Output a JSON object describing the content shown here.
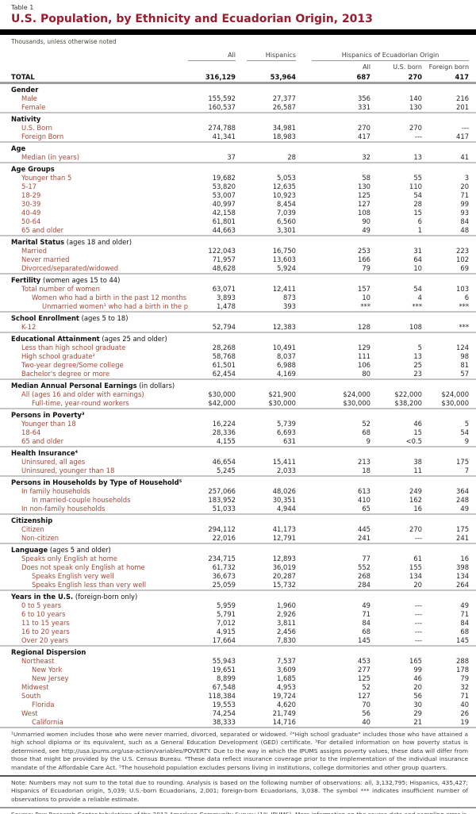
{
  "page": {
    "kicker": "Table 1",
    "title": "U.S. Population, by Ethnicity and Ecuadorian Origin, 2013",
    "subtitle": "Thousands, unless otherwise noted"
  },
  "colors": {
    "title_red": "#9A1C2E",
    "row_label_red": "#A04B3B",
    "header_bar": "#000000",
    "section_separator": "#c6c6c6",
    "total_rule": "#9e9e9e",
    "note_rule": "#565656",
    "body_text": "#262626"
  },
  "table": {
    "headers": {
      "all": "All",
      "hispanics": "Hispanics",
      "group": "Hispanics of Ecuadorian Origin",
      "sub": [
        "All",
        "U.S. born",
        "Foreign born"
      ]
    },
    "rows": [
      {
        "t": "total",
        "label": "TOTAL",
        "v": [
          "316,129",
          "53,964",
          "687",
          "270",
          "417"
        ]
      },
      {
        "t": "sec",
        "label": "Gender",
        "nb": true
      },
      {
        "t": "d",
        "label": "Male",
        "i": 1,
        "v": [
          "155,592",
          "27,377",
          "356",
          "140",
          "216"
        ]
      },
      {
        "t": "d",
        "label": "Female",
        "i": 1,
        "v": [
          "160,537",
          "26,587",
          "331",
          "130",
          "201"
        ]
      },
      {
        "t": "sec",
        "label": "Nativity"
      },
      {
        "t": "d",
        "label": "U.S. Born",
        "i": 1,
        "v": [
          "274,788",
          "34,981",
          "270",
          "270",
          "---"
        ]
      },
      {
        "t": "d",
        "label": "Foreign Born",
        "i": 1,
        "v": [
          "41,341",
          "18,983",
          "417",
          "---",
          "417"
        ]
      },
      {
        "t": "sec",
        "label": "Age"
      },
      {
        "t": "d",
        "label": "Median (in years)",
        "i": 1,
        "v": [
          "37",
          "28",
          "32",
          "13",
          "41"
        ]
      },
      {
        "t": "sec",
        "label": "Age Groups"
      },
      {
        "t": "d",
        "label": "Younger than 5",
        "i": 1,
        "v": [
          "19,682",
          "5,053",
          "58",
          "55",
          "3"
        ]
      },
      {
        "t": "d",
        "label": "5-17",
        "i": 1,
        "v": [
          "53,820",
          "12,635",
          "130",
          "110",
          "20"
        ]
      },
      {
        "t": "d",
        "label": "18-29",
        "i": 1,
        "v": [
          "53,007",
          "10,923",
          "125",
          "54",
          "71"
        ]
      },
      {
        "t": "d",
        "label": "30-39",
        "i": 1,
        "v": [
          "40,997",
          "8,454",
          "127",
          "28",
          "99"
        ]
      },
      {
        "t": "d",
        "label": "40-49",
        "i": 1,
        "v": [
          "42,158",
          "7,039",
          "108",
          "15",
          "93"
        ]
      },
      {
        "t": "d",
        "label": "50-64",
        "i": 1,
        "v": [
          "61,801",
          "6,560",
          "90",
          "6",
          "84"
        ]
      },
      {
        "t": "d",
        "label": "65 and older",
        "i": 1,
        "v": [
          "44,663",
          "3,301",
          "49",
          "1",
          "48"
        ]
      },
      {
        "t": "sec",
        "label": "Marital Status",
        "note": "(ages 18 and older)"
      },
      {
        "t": "d",
        "label": "Married",
        "i": 1,
        "v": [
          "122,043",
          "16,750",
          "253",
          "31",
          "223"
        ]
      },
      {
        "t": "d",
        "label": "Never married",
        "i": 1,
        "v": [
          "71,957",
          "13,603",
          "166",
          "64",
          "102"
        ]
      },
      {
        "t": "d",
        "label": "Divorced/separated/widowed",
        "i": 1,
        "v": [
          "48,628",
          "5,924",
          "79",
          "10",
          "69"
        ]
      },
      {
        "t": "sec",
        "label": "Fertility",
        "note": "(women ages 15 to 44)"
      },
      {
        "t": "d",
        "label": "Total number of women",
        "i": 1,
        "v": [
          "63,071",
          "12,411",
          "157",
          "54",
          "103"
        ]
      },
      {
        "t": "d",
        "label": "Women who had a birth in the past 12 months",
        "i": 2,
        "v": [
          "3,893",
          "873",
          "10",
          "4",
          "6"
        ]
      },
      {
        "t": "d",
        "label": "Unmarried women¹ who had a birth in the past 12 mo",
        "i": 3,
        "v": [
          "1,478",
          "393",
          "***",
          "***",
          "***"
        ]
      },
      {
        "t": "sec",
        "label": "School Enrollment",
        "note": "(ages 5 to 18)"
      },
      {
        "t": "d",
        "label": "K-12",
        "i": 1,
        "v": [
          "52,794",
          "12,383",
          "128",
          "108",
          "***"
        ]
      },
      {
        "t": "sec",
        "label": "Educational Attainment",
        "note": "(ages 25 and older)"
      },
      {
        "t": "d",
        "label": "Less than high school graduate",
        "i": 1,
        "v": [
          "28,268",
          "10,491",
          "129",
          "5",
          "124"
        ]
      },
      {
        "t": "d",
        "label": "High school graduate²",
        "i": 1,
        "v": [
          "58,768",
          "8,037",
          "111",
          "13",
          "98"
        ]
      },
      {
        "t": "d",
        "label": "Two-year degree/Some college",
        "i": 1,
        "v": [
          "61,501",
          "6,988",
          "106",
          "25",
          "81"
        ]
      },
      {
        "t": "d",
        "label": "Bachelor's degree or more",
        "i": 1,
        "v": [
          "62,454",
          "4,169",
          "80",
          "23",
          "57"
        ]
      },
      {
        "t": "sec",
        "label": "Median Annual Personal Earnings",
        "note": "(in dollars)"
      },
      {
        "t": "d",
        "label": "All (ages 16 and older with earnings)",
        "i": 1,
        "v": [
          "$30,000",
          "$21,900",
          "$24,000",
          "$22,000",
          "$24,000"
        ]
      },
      {
        "t": "d",
        "label": "Full-time, year-round workers",
        "i": 2,
        "v": [
          "$42,000",
          "$30,000",
          "$30,000",
          "$38,200",
          "$30,000"
        ]
      },
      {
        "t": "sec",
        "label": "Persons in Poverty³"
      },
      {
        "t": "d",
        "label": "Younger than 18",
        "i": 1,
        "v": [
          "16,224",
          "5,739",
          "52",
          "46",
          "5"
        ]
      },
      {
        "t": "d",
        "label": "18-64",
        "i": 1,
        "v": [
          "28,336",
          "6,693",
          "68",
          "15",
          "54"
        ]
      },
      {
        "t": "d",
        "label": "65 and older",
        "i": 1,
        "v": [
          "4,155",
          "631",
          "9",
          "<0.5",
          "9"
        ]
      },
      {
        "t": "sec",
        "label": "Health Insurance⁴"
      },
      {
        "t": "d",
        "label": "Uninsured, all ages",
        "i": 1,
        "v": [
          "46,654",
          "15,411",
          "213",
          "38",
          "175"
        ]
      },
      {
        "t": "d",
        "label": "Uninsured, younger than 18",
        "i": 1,
        "v": [
          "5,245",
          "2,033",
          "18",
          "11",
          "7"
        ]
      },
      {
        "t": "sec",
        "label": "Persons in Households by Type of Household⁵"
      },
      {
        "t": "d",
        "label": "In family households",
        "i": 1,
        "v": [
          "257,066",
          "48,026",
          "613",
          "249",
          "364"
        ]
      },
      {
        "t": "d",
        "label": "In married-couple households",
        "i": 2,
        "v": [
          "183,952",
          "30,351",
          "410",
          "162",
          "248"
        ]
      },
      {
        "t": "d",
        "label": "In non-family households",
        "i": 1,
        "v": [
          "51,033",
          "4,944",
          "65",
          "16",
          "49"
        ]
      },
      {
        "t": "sec",
        "label": "Citizenship"
      },
      {
        "t": "d",
        "label": "Citizen",
        "i": 1,
        "v": [
          "294,112",
          "41,173",
          "445",
          "270",
          "175"
        ]
      },
      {
        "t": "d",
        "label": "Non-citizen",
        "i": 1,
        "v": [
          "22,016",
          "12,791",
          "241",
          "---",
          "241"
        ]
      },
      {
        "t": "sec",
        "label": "Language",
        "note": "(ages 5 and older)"
      },
      {
        "t": "d",
        "label": "Speaks only English at home",
        "i": 1,
        "v": [
          "234,715",
          "12,893",
          "77",
          "61",
          "16"
        ]
      },
      {
        "t": "d",
        "label": "Does not speak only English at home",
        "i": 1,
        "v": [
          "61,732",
          "36,019",
          "552",
          "155",
          "398"
        ]
      },
      {
        "t": "d",
        "label": "Speaks English very well",
        "i": 2,
        "v": [
          "36,673",
          "20,287",
          "268",
          "134",
          "134"
        ]
      },
      {
        "t": "d",
        "label": "Speaks English less than very well",
        "i": 2,
        "v": [
          "25,059",
          "15,732",
          "284",
          "20",
          "264"
        ]
      },
      {
        "t": "sec",
        "label": "Years in the U.S.",
        "note": "(foreign-born only)"
      },
      {
        "t": "d",
        "label": "0 to 5 years",
        "i": 1,
        "v": [
          "5,959",
          "1,960",
          "49",
          "---",
          "49"
        ]
      },
      {
        "t": "d",
        "label": "6 to 10 years",
        "i": 1,
        "v": [
          "5,791",
          "2,926",
          "71",
          "---",
          "71"
        ]
      },
      {
        "t": "d",
        "label": "11 to 15 years",
        "i": 1,
        "v": [
          "7,012",
          "3,811",
          "84",
          "---",
          "84"
        ]
      },
      {
        "t": "d",
        "label": "16 to 20 years",
        "i": 1,
        "v": [
          "4,915",
          "2,456",
          "68",
          "---",
          "68"
        ]
      },
      {
        "t": "d",
        "label": "Over 20 years",
        "i": 1,
        "v": [
          "17,664",
          "7,830",
          "145",
          "---",
          "145"
        ]
      },
      {
        "t": "sec",
        "label": "Regional Dispersion"
      },
      {
        "t": "d",
        "label": "Northeast",
        "i": 1,
        "v": [
          "55,943",
          "7,537",
          "453",
          "165",
          "288"
        ]
      },
      {
        "t": "d",
        "label": "New York",
        "i": 2,
        "v": [
          "19,651",
          "3,609",
          "277",
          "99",
          "178"
        ]
      },
      {
        "t": "d",
        "label": "New Jersey",
        "i": 2,
        "v": [
          "8,899",
          "1,685",
          "125",
          "46",
          "79"
        ]
      },
      {
        "t": "d",
        "label": "Midwest",
        "i": 1,
        "v": [
          "67,548",
          "4,953",
          "52",
          "20",
          "32"
        ]
      },
      {
        "t": "d",
        "label": "South",
        "i": 1,
        "v": [
          "118,384",
          "19,724",
          "127",
          "56",
          "71"
        ]
      },
      {
        "t": "d",
        "label": "Florida",
        "i": 2,
        "v": [
          "19,553",
          "4,620",
          "70",
          "30",
          "40"
        ]
      },
      {
        "t": "d",
        "label": "West",
        "i": 1,
        "v": [
          "74,254",
          "21,749",
          "56",
          "29",
          "26"
        ]
      },
      {
        "t": "d",
        "label": "California",
        "i": 2,
        "v": [
          "38,333",
          "14,716",
          "40",
          "21",
          "19"
        ]
      }
    ]
  },
  "footnotes": "¹Unmarried women includes those who were never married, divorced, separated or widowed. ²\"High school graduate\" includes those who have attained a high school diploma or its equivalent, such as a General Education Development (GED) certificate. ³For detailed information on how poverty status is determined, see http://usa.ipums.org/usa-action/variables/POVERTY.  Due to the way in which the IPUMS assigns poverty values, these data will differ from those that might be provided by the U.S. Census Bureau. ⁴These data reflect insurance coverage prior to the implementation of the individual insurance mandate of the Affordable Care Act. ⁵The household population excludes persons living in institutions, college dormitories and other group quarters.",
  "note": "Note: Numbers may not sum to the total due to rounding. Analysis is based on the following number of observations: all, 3,132,795; Hispanics, 435,427; Hispanics of Ecuadorian origin, 5,039; U.S.-born Ecuadorians, 2,001; foreign-born Ecuadorians, 3,038. The symbol *** indicates insufficient number of observations to provide a reliable estimate.",
  "source": "Source: Pew Research Center tabulations of the 2013 American Community Survey (1% IPUMS). More information on the source data and sampling error is available at http://usa.ipums.org/usa/design.shtml and http://www.census.gov/acs/www/Downloads/data_documentation/Accuracy/ACS_Accuracy_of_Data_2013.pdf."
}
